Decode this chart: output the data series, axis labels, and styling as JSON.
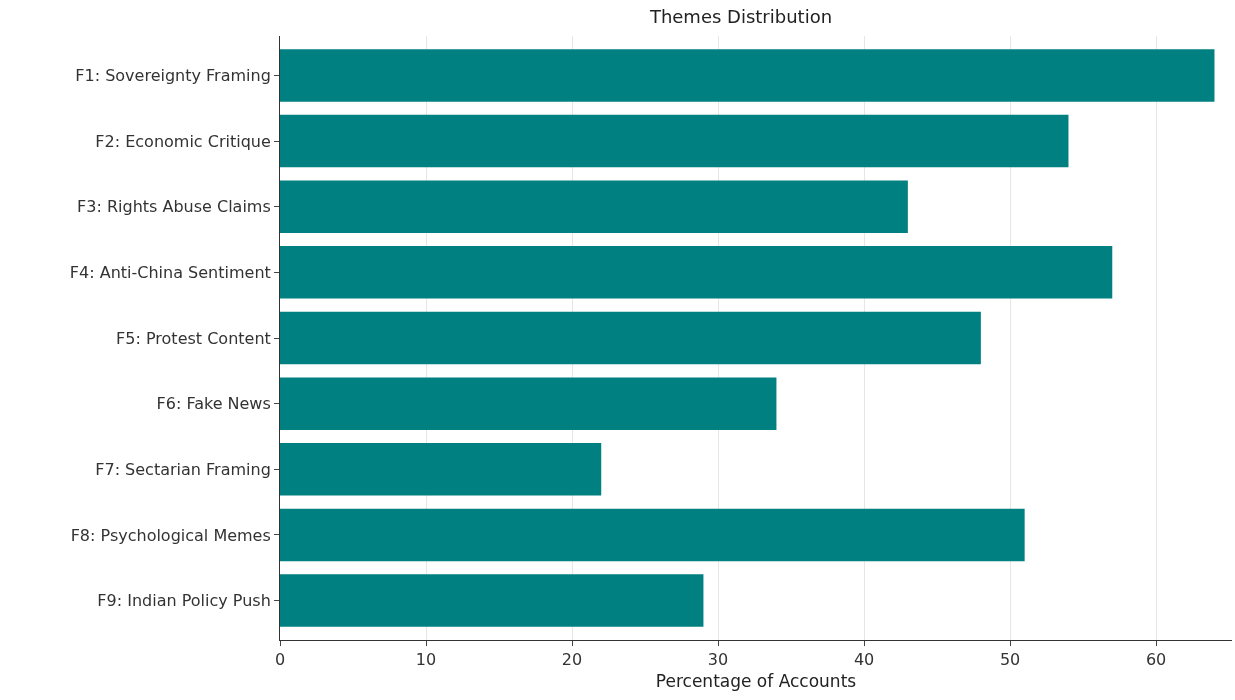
{
  "chart_data": {
    "type": "bar",
    "orientation": "horizontal",
    "title": "Themes Distribution",
    "xlabel": "Percentage of Accounts",
    "categories": [
      "F1: Sovereignty Framing",
      "F2: Economic Critique",
      "F3: Rights Abuse Claims",
      "F4: Anti-China Sentiment",
      "F5: Protest Content",
      "F6: Fake News",
      "F7: Sectarian Framing",
      "F8: Psychological Memes",
      "F9: Indian Policy Push"
    ],
    "values": [
      64,
      54,
      43,
      57,
      48,
      34,
      22,
      51,
      29
    ],
    "color": "#008080",
    "xlim": [
      0,
      65.2
    ],
    "xticks": [
      0,
      10,
      20,
      30,
      40,
      50,
      60
    ],
    "grid": "x"
  }
}
